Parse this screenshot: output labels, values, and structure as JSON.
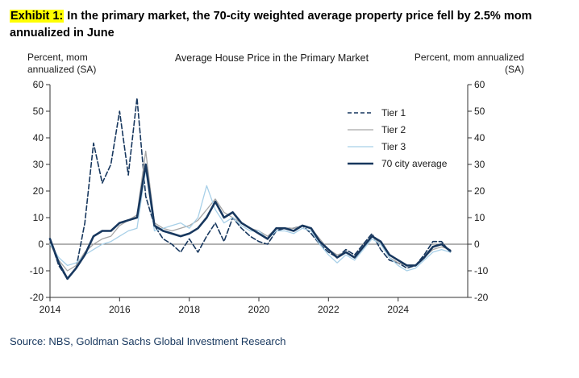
{
  "header": {
    "exhibit_label": "Exhibit 1:",
    "title_rest": "In the primary market, the 70-city weighted average property price fell by 2.5% mom annualized in June"
  },
  "axis_captions": {
    "left": "Percent, mom annualized (SA)",
    "right": "Percent, mom annualized (SA)"
  },
  "source": "Source: NBS, Goldman Sachs Global Investment Research",
  "colors": {
    "highlight": "#ffff00",
    "axis": "#333333",
    "source_text": "#17375e"
  },
  "chart_data": {
    "type": "line",
    "title": "Average House Price in the Primary Market",
    "ylabel_left": "Percent, mom annualized (SA)",
    "ylabel_right": "Percent, mom annualized (SA)",
    "xlim": [
      2014,
      2026
    ],
    "ylim": [
      -20,
      60
    ],
    "yticks": [
      60,
      50,
      40,
      30,
      20,
      10,
      0,
      -10,
      -20
    ],
    "xticks": [
      2014,
      2016,
      2018,
      2020,
      2022,
      2024
    ],
    "zero_line": true,
    "grid": false,
    "legend_position": "upper-right-inside",
    "x": [
      2014,
      2014.25,
      2014.5,
      2014.75,
      2015,
      2015.25,
      2015.5,
      2015.75,
      2016,
      2016.25,
      2016.5,
      2016.75,
      2017,
      2017.25,
      2017.5,
      2017.75,
      2018,
      2018.25,
      2018.5,
      2018.75,
      2019,
      2019.25,
      2019.5,
      2019.75,
      2020,
      2020.25,
      2020.5,
      2020.75,
      2021,
      2021.25,
      2021.5,
      2021.75,
      2022,
      2022.25,
      2022.5,
      2022.75,
      2023,
      2023.25,
      2023.5,
      2023.75,
      2024,
      2024.25,
      2024.5,
      2024.75,
      2025,
      2025.25,
      2025.5
    ],
    "series": [
      {
        "name": "Tier 1",
        "style": "dashed",
        "color": "#17375e",
        "width": 1.6,
        "values": [
          2,
          -8,
          -13,
          -9,
          8,
          38,
          23,
          30,
          50,
          26,
          55,
          18,
          7,
          2,
          0,
          -3,
          2,
          -3,
          3,
          8,
          1,
          10,
          6,
          3,
          1,
          0,
          5,
          6,
          6,
          7,
          4,
          0,
          -3,
          -5,
          -2,
          -4,
          0,
          4,
          -2,
          -6,
          -7,
          -9,
          -8,
          -4,
          1,
          1,
          -3
        ]
      },
      {
        "name": "Tier 2",
        "style": "solid",
        "color": "#a6a6a6",
        "width": 1.3,
        "values": [
          0,
          -6,
          -10,
          -8,
          -3,
          0,
          2,
          3,
          7,
          9,
          11,
          35,
          8,
          6,
          5,
          6,
          7,
          9,
          13,
          17,
          12,
          10,
          8,
          6,
          5,
          3,
          6,
          6,
          6,
          7,
          6,
          2,
          -2,
          -4,
          -3,
          -5,
          -1,
          3,
          0,
          -5,
          -7,
          -8,
          -8,
          -5,
          -2,
          -1,
          -2
        ]
      },
      {
        "name": "Tier 3",
        "style": "solid",
        "color": "#a8d0e8",
        "width": 1.3,
        "values": [
          0,
          -5,
          -8,
          -7,
          -4,
          -2,
          0,
          1,
          3,
          5,
          6,
          28,
          5,
          6,
          7,
          8,
          6,
          10,
          22,
          13,
          8,
          10,
          7,
          5,
          5,
          2,
          5,
          5,
          4,
          6,
          5,
          0,
          -4,
          -7,
          -4,
          -6,
          -2,
          2,
          0,
          -5,
          -8,
          -10,
          -9,
          -6,
          -3,
          -2,
          -3
        ]
      },
      {
        "name": "70 city average",
        "style": "solid",
        "color": "#17375e",
        "width": 2.6,
        "values": [
          2,
          -7,
          -13,
          -9,
          -4,
          3,
          5,
          5,
          8,
          9,
          10,
          30,
          7,
          5,
          4,
          3,
          4,
          6,
          10,
          16,
          10,
          12,
          8,
          6,
          4,
          2,
          6,
          6,
          5,
          7,
          6,
          1,
          -2,
          -5,
          -3,
          -5,
          -1,
          3,
          1,
          -4,
          -6,
          -8,
          -8,
          -5,
          -1,
          0,
          -2.5
        ]
      }
    ]
  }
}
